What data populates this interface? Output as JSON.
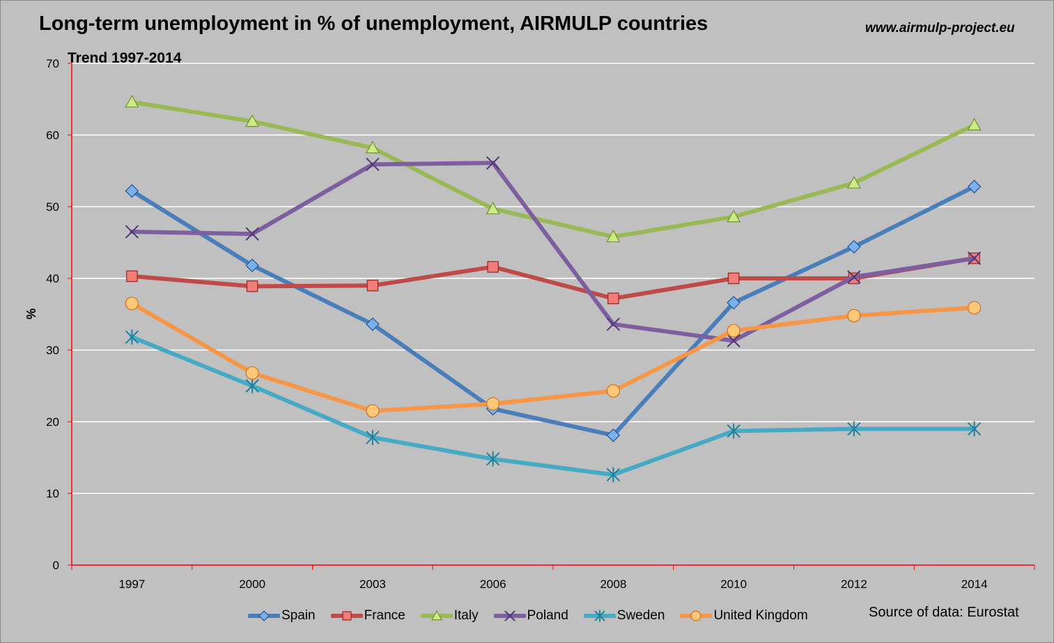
{
  "header": {
    "title": "Long-term unemployment in % of unemployment, AIRMULP countries",
    "website": "www.airmulp-project.eu",
    "subtitle": "Trend 1997-2014",
    "source": "Source of data: Eurostat"
  },
  "chart_data": {
    "type": "line",
    "title": "Long-term unemployment in % of unemployment, AIRMULP countries",
    "subtitle": "Trend 1997-2014",
    "ylabel": "%",
    "xlabel": "",
    "ylim": [
      0,
      70
    ],
    "yticks": [
      0,
      10,
      20,
      30,
      40,
      50,
      60,
      70
    ],
    "grid": true,
    "legend": "bottom",
    "categories": [
      "1997",
      "2000",
      "2003",
      "2006",
      "2008",
      "2010",
      "2012",
      "2014"
    ],
    "series": [
      {
        "name": "Spain",
        "color": "#4a7ebb",
        "marker": "diamond",
        "values": [
          52.2,
          41.8,
          33.6,
          21.8,
          18.1,
          36.6,
          44.4,
          52.8
        ]
      },
      {
        "name": "France",
        "color": "#be4b48",
        "marker": "square",
        "values": [
          40.3,
          38.9,
          39.0,
          41.6,
          37.2,
          40.0,
          40.0,
          42.8
        ]
      },
      {
        "name": "Italy",
        "color": "#98b954",
        "marker": "triangle",
        "values": [
          64.6,
          61.9,
          58.2,
          49.7,
          45.8,
          48.6,
          53.3,
          61.4
        ]
      },
      {
        "name": "Poland",
        "color": "#7d5fa0",
        "marker": "x",
        "values": [
          46.5,
          46.2,
          55.9,
          56.1,
          33.6,
          31.3,
          40.2,
          42.8
        ]
      },
      {
        "name": "Sweden",
        "color": "#46aac5",
        "marker": "star",
        "values": [
          31.8,
          25.0,
          17.8,
          14.8,
          12.6,
          18.7,
          19.0,
          19.0
        ]
      },
      {
        "name": "United Kingdom",
        "color": "#f79646",
        "marker": "circle",
        "values": [
          36.5,
          26.8,
          21.5,
          22.5,
          24.3,
          32.7,
          34.8,
          35.9
        ]
      }
    ]
  }
}
